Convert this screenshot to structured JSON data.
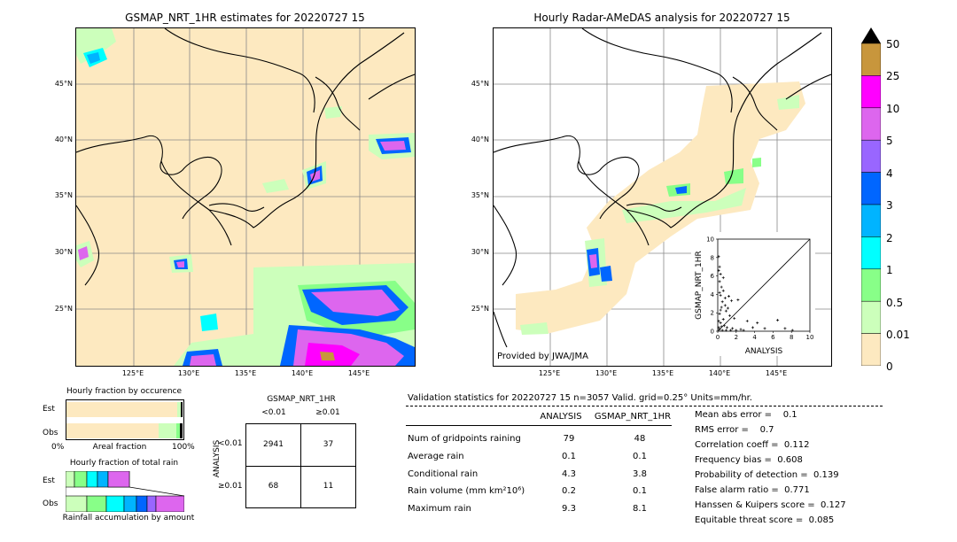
{
  "left_map": {
    "title": "GSMAP_NRT_1HR estimates for 20220727 15",
    "lat_ticks": [
      "45°N",
      "40°N",
      "35°N",
      "30°N",
      "25°N"
    ],
    "lon_ticks": [
      "125°E",
      "130°E",
      "135°E",
      "140°E",
      "145°E"
    ]
  },
  "right_map": {
    "title": "Hourly Radar-AMeDAS analysis for 20220727 15",
    "lat_ticks": [
      "45°N",
      "40°N",
      "35°N",
      "30°N",
      "25°N"
    ],
    "lon_ticks": [
      "125°E",
      "130°E",
      "135°E",
      "140°E",
      "145°E"
    ],
    "credit": "Provided by JWA/JMA"
  },
  "colorbar": {
    "labels": [
      "50",
      "25",
      "10",
      "5",
      "4",
      "3",
      "2",
      "1",
      "0.5",
      "0.01",
      "0"
    ],
    "colors": [
      "#c8963c",
      "#ff00ff",
      "#dd66ee",
      "#9966ff",
      "#0066ff",
      "#00b4ff",
      "#00ffff",
      "#88ff88",
      "#ccffbb",
      "#fde9c0"
    ]
  },
  "chart_data": [
    {
      "type": "scatter",
      "title": "",
      "xlabel": "ANALYSIS",
      "ylabel": "GSMAP_NRT_1HR",
      "xlim": [
        0,
        10
      ],
      "ylim": [
        0,
        10
      ],
      "x_ticks": [
        "0",
        "2",
        "4",
        "6",
        "8",
        "10"
      ],
      "y_ticks": [
        "0",
        "2",
        "4",
        "6",
        "8",
        "10"
      ],
      "points": [
        [
          0.1,
          8.1
        ],
        [
          0.2,
          7.0
        ],
        [
          0.3,
          6.2
        ],
        [
          0.2,
          5.4
        ],
        [
          0.4,
          4.8
        ],
        [
          0.6,
          4.4
        ],
        [
          0.3,
          3.9
        ],
        [
          0.8,
          3.6
        ],
        [
          1.2,
          3.8
        ],
        [
          0.5,
          3.2
        ],
        [
          1.5,
          3.3
        ],
        [
          2.2,
          3.4
        ],
        [
          0.4,
          2.6
        ],
        [
          0.9,
          2.2
        ],
        [
          0.2,
          1.9
        ],
        [
          1.3,
          1.7
        ],
        [
          0.6,
          1.3
        ],
        [
          0.1,
          1.1
        ],
        [
          1.8,
          1.4
        ],
        [
          0.3,
          0.9
        ],
        [
          0.7,
          0.6
        ],
        [
          1.0,
          0.4
        ],
        [
          1.6,
          0.3
        ],
        [
          2.5,
          0.2
        ],
        [
          3.2,
          1.1
        ],
        [
          3.8,
          0.4
        ],
        [
          4.3,
          0.9
        ],
        [
          5.1,
          0.3
        ],
        [
          6.5,
          1.2
        ],
        [
          7.3,
          0.3
        ],
        [
          8.1,
          0.1
        ],
        [
          0.2,
          0.2
        ],
        [
          0.5,
          0.1
        ],
        [
          0.9,
          0.1
        ],
        [
          1.4,
          0.1
        ],
        [
          2.0,
          0.1
        ],
        [
          2.8,
          0.1
        ],
        [
          0.1,
          0.4
        ],
        [
          0.4,
          0.5
        ],
        [
          0.3,
          2.3
        ],
        [
          0.8,
          2.8
        ],
        [
          1.1,
          2.5
        ],
        [
          0.2,
          4.2
        ],
        [
          0.6,
          5.8
        ],
        [
          0.1,
          6.6
        ]
      ]
    },
    {
      "type": "bar",
      "title": "Hourly fraction by occurence",
      "categories": [
        "Est",
        "Obs"
      ],
      "xlabel": "Areal fraction",
      "x_ticks": [
        "0%",
        "100%"
      ]
    },
    {
      "type": "bar",
      "title": "Hourly fraction of total rain",
      "categories": [
        "Est",
        "Obs"
      ],
      "xlabel": "Rainfall accumulation by amount"
    },
    {
      "type": "table",
      "title": "GSMAP_NRT_1HR",
      "col_headers": [
        "<0.01",
        "≥0.01"
      ],
      "row_axis_label": "ANALYSIS",
      "row_headers": [
        "<0.01",
        "≥0.01"
      ],
      "cells": [
        [
          "2941",
          "37"
        ],
        [
          "68",
          "11"
        ]
      ]
    },
    {
      "type": "table",
      "title": "Validation statistics for 20220727 15  n=3057 Valid. grid=0.25°  Units=mm/hr.",
      "columns": [
        "",
        "ANALYSIS",
        "GSMAP_NRT_1HR"
      ],
      "rows": [
        {
          "label": "Num of gridpoints raining",
          "analysis": "79",
          "gsmap": "48"
        },
        {
          "label": "Average rain",
          "analysis": "0.1",
          "gsmap": "0.1"
        },
        {
          "label": "Conditional rain",
          "analysis": "4.3",
          "gsmap": "3.8"
        },
        {
          "label": "Rain volume (mm km²10⁶)",
          "analysis": "0.2",
          "gsmap": "0.1"
        },
        {
          "label": "Maximum rain",
          "analysis": "9.3",
          "gsmap": "8.1"
        }
      ],
      "scores": [
        "Mean abs error =    0.1",
        "RMS error =    0.7",
        "Correlation coeff =  0.112",
        "Frequency bias =  0.608",
        "Probability of detection =  0.139",
        "False alarm ratio =  0.771",
        "Hanssen & Kuipers score =  0.127",
        "Equitable threat score =  0.085"
      ]
    }
  ]
}
